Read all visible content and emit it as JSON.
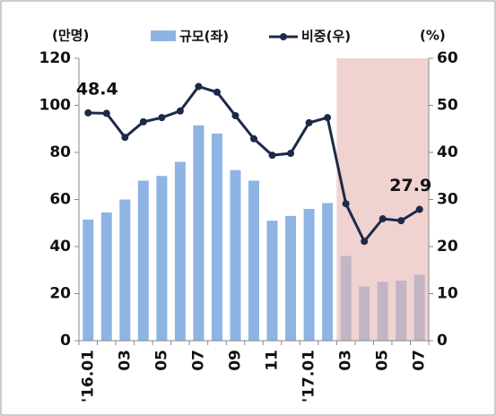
{
  "chart_data": {
    "type": "bar_line",
    "y_unit": "(만명)",
    "y2_unit": "(%)",
    "categories": [
      "'16.01",
      null,
      "03",
      null,
      "05",
      null,
      "07",
      null,
      "09",
      null,
      "11",
      null,
      "'17.01",
      null,
      "03",
      null,
      "05",
      null,
      "07"
    ],
    "series": [
      {
        "name": "규모(좌)",
        "type": "bar",
        "color": "#8eb4e3",
        "values": [
          51.5,
          54.5,
          60,
          68,
          70,
          76,
          91.5,
          88,
          72.5,
          68,
          51,
          53,
          56,
          58.5,
          36,
          23,
          25,
          25.5,
          28
        ]
      },
      {
        "name": "비중(우)",
        "type": "line",
        "axis": "y2",
        "color": "#1c2a48",
        "values": [
          48.4,
          48.3,
          43.2,
          46.5,
          47.4,
          48.8,
          54,
          52.8,
          47.8,
          42.9,
          39.4,
          39.8,
          46.3,
          47.4,
          29.1,
          21.1,
          25.9,
          25.5,
          27.9
        ],
        "value_labels": [
          "48.4",
          null,
          null,
          null,
          null,
          null,
          null,
          null,
          null,
          null,
          null,
          null,
          null,
          null,
          null,
          null,
          null,
          null,
          "27.9"
        ]
      }
    ],
    "ylim": [
      0,
      120
    ],
    "yticks": [
      0,
      20,
      40,
      60,
      80,
      100,
      120
    ],
    "y2lim": [
      0,
      60
    ],
    "y2ticks": [
      0,
      10,
      20,
      30,
      40,
      50,
      60
    ],
    "shaded_from_index": 14,
    "shade_color": "#e6b4b3"
  }
}
